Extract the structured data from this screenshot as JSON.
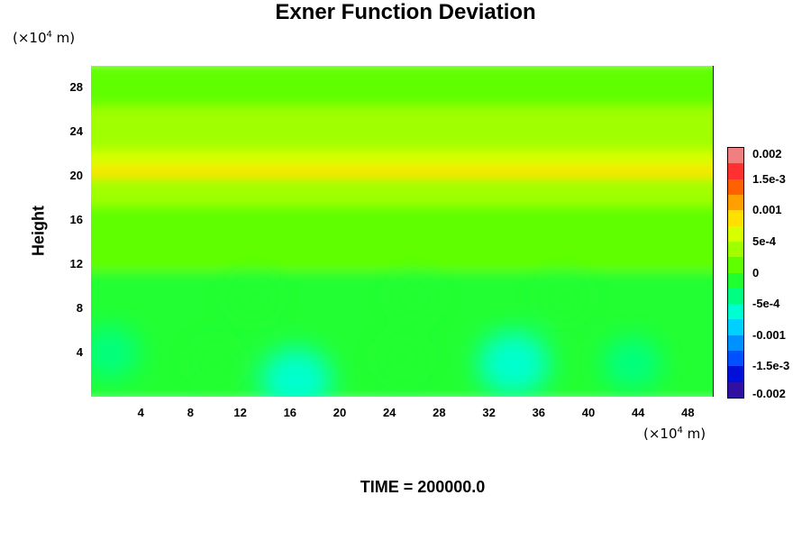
{
  "chart_data": {
    "type": "heatmap",
    "title": "Exner Function Deviation",
    "ylabel": "Height",
    "x_unit": "(×10⁴ m)",
    "y_unit": "(×10⁴ m)",
    "x_ticks": [
      "4",
      "8",
      "12",
      "16",
      "20",
      "24",
      "28",
      "32",
      "36",
      "40",
      "44",
      "48"
    ],
    "y_ticks": [
      "28",
      "24",
      "20",
      "16",
      "12",
      "8",
      "4"
    ],
    "xlim": [
      0,
      50
    ],
    "ylim": [
      0,
      30
    ],
    "colorbar": {
      "labels": [
        "0.002",
        "1.5e-3",
        "0.001",
        "5e-4",
        "0",
        "-5e-4",
        "-0.001",
        "-1.5e-3",
        "-0.002"
      ],
      "range": [
        -0.002,
        0.002
      ],
      "colors": [
        "#f08080",
        "#ff3030",
        "#ff6000",
        "#ffa000",
        "#ffe000",
        "#d8ff00",
        "#a0ff00",
        "#60ff00",
        "#20ff30",
        "#00ff80",
        "#00ffd0",
        "#00d0ff",
        "#0090ff",
        "#0050ff",
        "#0010d8",
        "#3010a0"
      ]
    },
    "bands": [
      {
        "y": [
          28,
          30
        ],
        "value": 0.0002
      },
      {
        "y": [
          26,
          28
        ],
        "value": 0.00025
      },
      {
        "y": [
          24,
          26
        ],
        "value": 0.0003
      },
      {
        "y": [
          22,
          24
        ],
        "value": 0.00045
      },
      {
        "y": [
          20.5,
          22
        ],
        "value": 0.0007
      },
      {
        "y": [
          19.5,
          20.5
        ],
        "value": 0.0009
      },
      {
        "y": [
          17,
          19.5
        ],
        "value": 0.0005
      },
      {
        "y": [
          14,
          17
        ],
        "value": 0.0002
      },
      {
        "y": [
          11,
          14
        ],
        "value": 0.0001
      },
      {
        "y": [
          0,
          11
        ],
        "value": -0.0001
      }
    ],
    "anomalies": [
      {
        "x": 1.5,
        "y": 4.0,
        "value": -0.0004
      },
      {
        "x": 16.5,
        "y": 1.5,
        "value": -0.0006
      },
      {
        "x": 34.0,
        "y": 3.0,
        "value": -0.0006
      },
      {
        "x": 43.5,
        "y": 3.0,
        "value": -0.0004
      },
      {
        "x": 10.0,
        "y": 3.0,
        "value": -0.0002
      },
      {
        "x": 25.0,
        "y": 3.5,
        "value": -0.0002
      },
      {
        "x": 13.0,
        "y": 9.0,
        "value": -0.0002
      },
      {
        "x": 26.0,
        "y": 9.0,
        "value": -0.0002
      },
      {
        "x": 38.0,
        "y": 9.0,
        "value": -0.0002
      }
    ],
    "time_label": "TIME = 200000.0"
  }
}
